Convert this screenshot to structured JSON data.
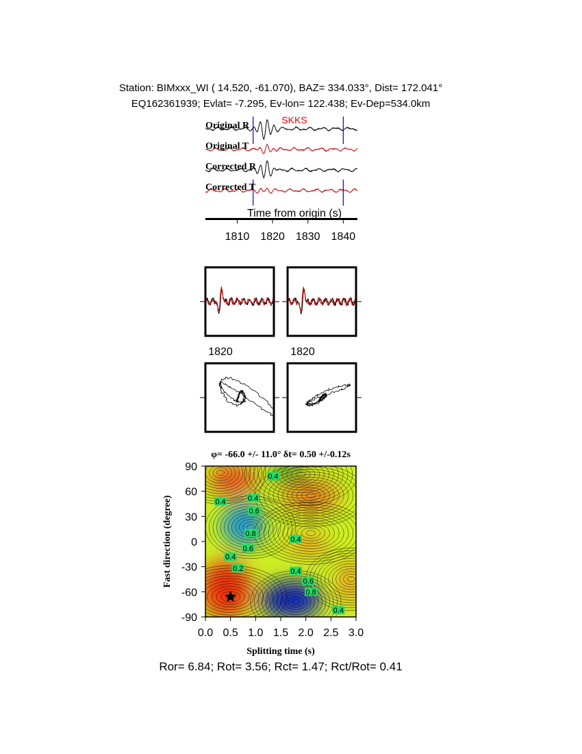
{
  "header": {
    "line1": "Station: BIMxxx_WI (  14.520,  -61.070), BAZ=  334.033°, Dist=  172.041°",
    "line2": "EQ162361939; Evlat=  -7.295, Ev-lon= 122.438; Ev-Dep=534.0km"
  },
  "footer": {
    "ratios": "Ror= 6.84; Rot= 3.56; Rct= 1.47; Rct/Rot= 0.41"
  },
  "colors": {
    "trace_black": "#000000",
    "trace_red": "#cc0000",
    "marker_blue": "#0000cc",
    "phase_red": "#ee0000"
  },
  "chart_data": [
    {
      "type": "line",
      "panel": "seismograms",
      "phase_label": "SKKS",
      "traces": [
        {
          "name": "Original R",
          "color": "#000000",
          "peak": 1.0
        },
        {
          "name": "Original T",
          "color": "#cc0000",
          "peak": 0.45
        },
        {
          "name": "Corrected R",
          "color": "#000000",
          "peak": 1.0
        },
        {
          "name": "Corrected T",
          "color": "#cc0000",
          "peak": 0.2
        }
      ],
      "xlabel": "Time from origin (s)",
      "xlim": [
        1801,
        1844
      ],
      "xticks": [
        1810,
        1820,
        1830,
        1840
      ],
      "window_start": 1814.5,
      "window_end": 1840,
      "phase_arrival": 1818
    },
    {
      "type": "line",
      "panel": "waveform-comparison",
      "tick_label": "1820",
      "subpanels": [
        "original",
        "corrected"
      ]
    },
    {
      "type": "line",
      "panel": "particle-motion",
      "subpanels": [
        "original",
        "corrected"
      ]
    },
    {
      "type": "heatmap",
      "panel": "grid-search",
      "title_phi": "φ= -66.0 +/- 11.0°",
      "title_dt": "δt= 0.50 +/-0.12s",
      "xlabel": "Splitting time (s)",
      "ylabel": "Fast direction (degree)",
      "xlim": [
        0,
        3
      ],
      "ylim": [
        -90,
        90
      ],
      "xticks": [
        "0.0",
        "0.5",
        "1.0",
        "1.5",
        "2.0",
        "2.5",
        "3.0"
      ],
      "yticks": [
        "90",
        "60",
        "30",
        "0",
        "-30",
        "-60",
        "-90"
      ],
      "best_fit": {
        "dt": 0.5,
        "phi": -66
      },
      "contour_labels": [
        {
          "text": "0.4",
          "dt": 1.35,
          "phi": 78
        },
        {
          "text": "0.4",
          "dt": 0.95,
          "phi": 52
        },
        {
          "text": "0.6",
          "dt": 0.97,
          "phi": 37
        },
        {
          "text": "0.4",
          "dt": 0.3,
          "phi": 48
        },
        {
          "text": "0.8",
          "dt": 0.9,
          "phi": 10
        },
        {
          "text": "0.6",
          "dt": 0.85,
          "phi": -8
        },
        {
          "text": "0.4",
          "dt": 0.5,
          "phi": -18
        },
        {
          "text": "0.4",
          "dt": 1.8,
          "phi": 3
        },
        {
          "text": "0.2",
          "dt": 0.65,
          "phi": -32
        },
        {
          "text": "0.4",
          "dt": 1.8,
          "phi": -35
        },
        {
          "text": "0.6",
          "dt": 2.05,
          "phi": -47
        },
        {
          "text": "0.8",
          "dt": 2.1,
          "phi": -60
        },
        {
          "text": "0.4",
          "dt": 2.65,
          "phi": -82
        }
      ]
    }
  ]
}
